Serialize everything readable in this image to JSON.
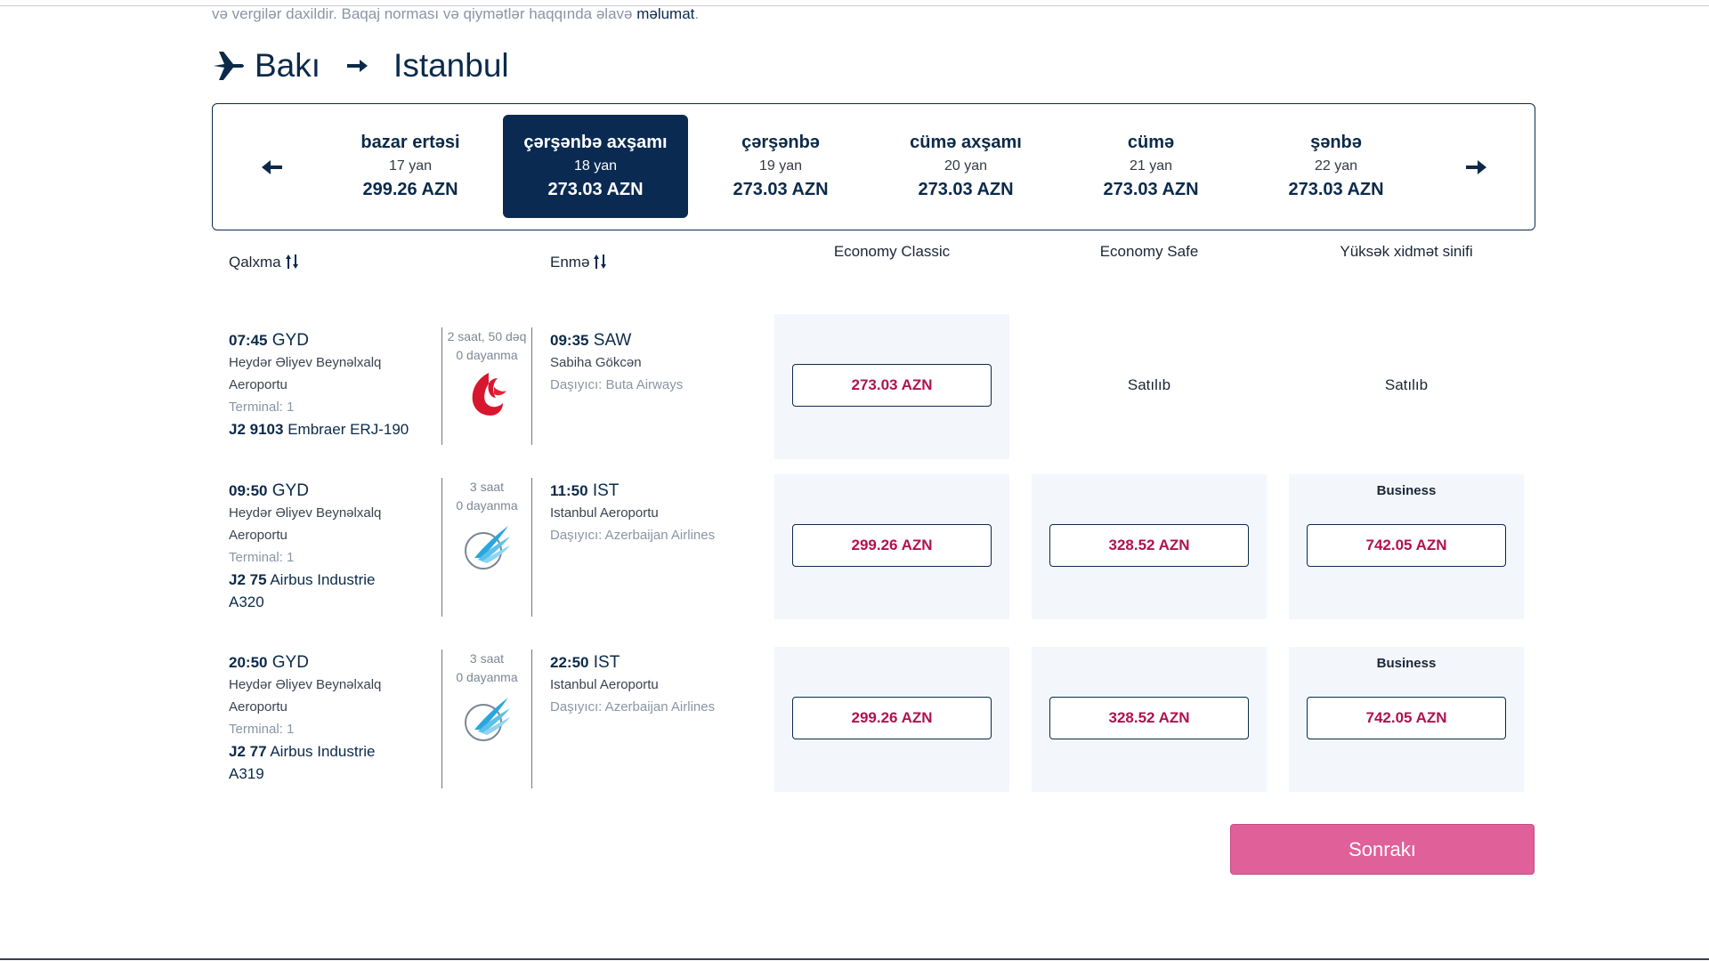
{
  "notice": {
    "text": "və vergilər daxildir. Baqaj norması və qiymətlər haqqında əlavə ",
    "link": "məlumat",
    "tail": "."
  },
  "route": {
    "from": "Bakı",
    "to": "Istanbul"
  },
  "dates": [
    {
      "name": "bazar ertəsi",
      "date": "17 yan",
      "price": "299.26 AZN",
      "active": false
    },
    {
      "name": "çərşənbə axşamı",
      "date": "18 yan",
      "price": "273.03 AZN",
      "active": true
    },
    {
      "name": "çərşənbə",
      "date": "19 yan",
      "price": "273.03 AZN",
      "active": false
    },
    {
      "name": "cümə axşamı",
      "date": "20 yan",
      "price": "273.03 AZN",
      "active": false
    },
    {
      "name": "cümə",
      "date": "21 yan",
      "price": "273.03 AZN",
      "active": false
    },
    {
      "name": "şənbə",
      "date": "22 yan",
      "price": "273.03 AZN",
      "active": false
    }
  ],
  "headers": {
    "departure": "Qalxma",
    "arrival": "Enmə",
    "fare1": "Economy Classic",
    "fare2": "Economy Safe",
    "fare3": "Yüksək xidmət sinifi"
  },
  "flights": [
    {
      "dep_time": "07:45",
      "dep_code": "GYD",
      "dep_airport_1": "Heydər Əliyev Beynəlxalq",
      "dep_airport_2": "Aeroportu",
      "terminal": "Terminal: 1",
      "flight_no": "J2 9103",
      "aircraft_1": "Embraer ERJ-190",
      "aircraft_2": "",
      "duration": "2 saat, 50 dəq",
      "stops": "0 dayanma",
      "arr_time": "09:35",
      "arr_code": "SAW",
      "arr_airport": "Sabiha Gökcən",
      "carrier": "Daşıyıcı: Buta Airways",
      "logo": "buta-airways-logo",
      "fares": [
        {
          "type": "price",
          "value": "273.03  AZN",
          "badge": ""
        },
        {
          "type": "sold",
          "value": "Satılıb",
          "badge": ""
        },
        {
          "type": "sold",
          "value": "Satılıb",
          "badge": ""
        }
      ]
    },
    {
      "dep_time": "09:50",
      "dep_code": "GYD",
      "dep_airport_1": "Heydər Əliyev Beynəlxalq",
      "dep_airport_2": "Aeroportu",
      "terminal": "Terminal: 1",
      "flight_no": "J2 75",
      "aircraft_1": "Airbus Industrie",
      "aircraft_2": "A320",
      "duration": "3 saat",
      "stops": "0 dayanma",
      "arr_time": "11:50",
      "arr_code": "IST",
      "arr_airport": "Istanbul Aeroportu",
      "carrier": "Daşıyıcı: Azerbaijan Airlines",
      "logo": "azal-logo",
      "fares": [
        {
          "type": "price",
          "value": "299.26  AZN",
          "badge": ""
        },
        {
          "type": "price",
          "value": "328.52  AZN",
          "badge": ""
        },
        {
          "type": "price",
          "value": "742.05  AZN",
          "badge": "Business"
        }
      ]
    },
    {
      "dep_time": "20:50",
      "dep_code": "GYD",
      "dep_airport_1": "Heydər Əliyev Beynəlxalq",
      "dep_airport_2": "Aeroportu",
      "terminal": "Terminal: 1",
      "flight_no": "J2 77",
      "aircraft_1": "Airbus Industrie",
      "aircraft_2": "A319",
      "duration": "3 saat",
      "stops": "0 dayanma",
      "arr_time": "22:50",
      "arr_code": "IST",
      "arr_airport": "Istanbul Aeroportu",
      "carrier": "Daşıyıcı: Azerbaijan Airlines",
      "logo": "azal-logo",
      "fares": [
        {
          "type": "price",
          "value": "299.26  AZN",
          "badge": ""
        },
        {
          "type": "price",
          "value": "328.52  AZN",
          "badge": ""
        },
        {
          "type": "price",
          "value": "742.05  AZN",
          "badge": "Business"
        }
      ]
    }
  ],
  "next_label": "Sonrakı",
  "colors": {
    "navy": "#0a2a52",
    "price": "#b0124f",
    "cta": "#e0609a",
    "band": "#f3f7fc"
  }
}
